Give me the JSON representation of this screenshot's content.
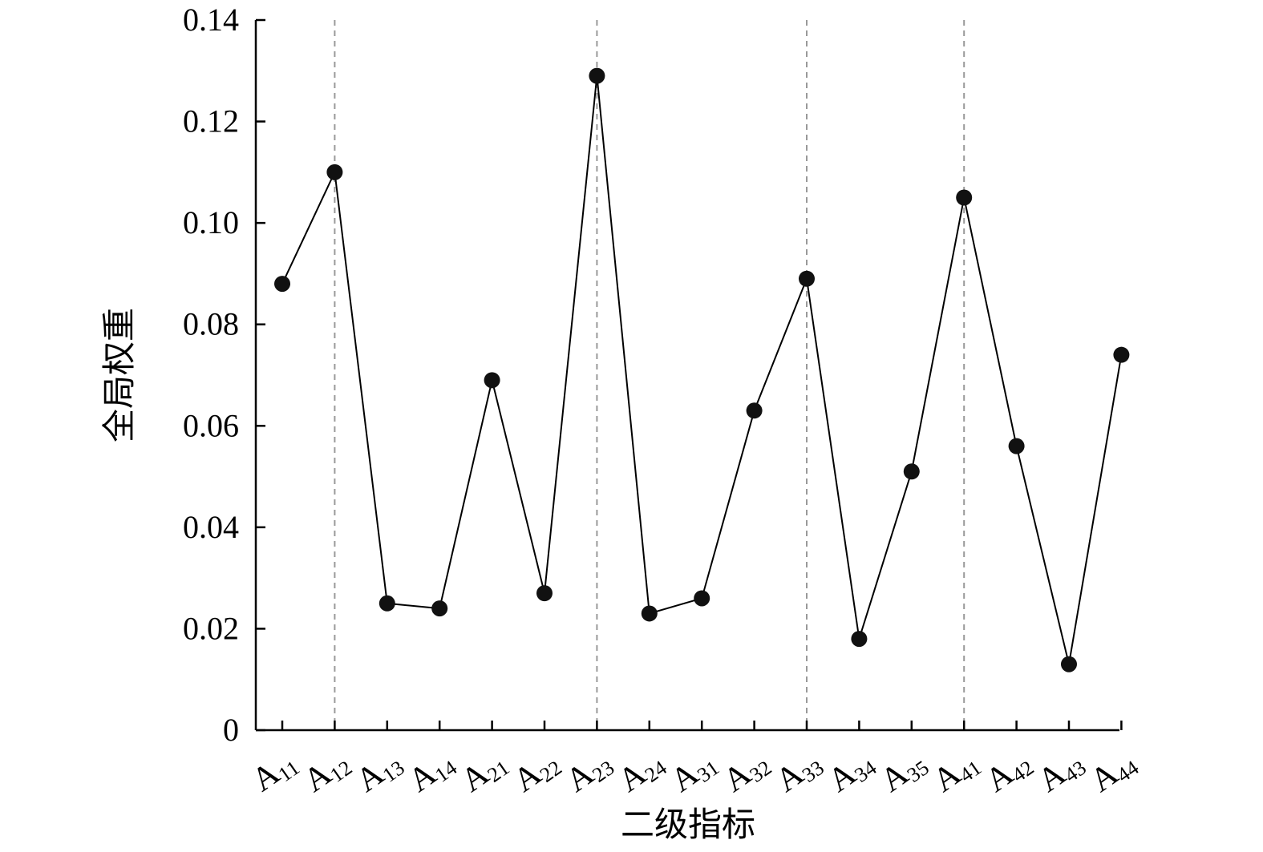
{
  "chart_data": {
    "type": "line",
    "title": "",
    "xlabel": "二级指标",
    "ylabel": "全局权重",
    "ylim": [
      0,
      0.14
    ],
    "yticks": [
      "0",
      "0.02",
      "0.04",
      "0.06",
      "0.08",
      "0.10",
      "0.12",
      "0.14"
    ],
    "grid": false,
    "legend": "none",
    "categories": [
      {
        "main": "A",
        "sub": "11"
      },
      {
        "main": "A",
        "sub": "12"
      },
      {
        "main": "A",
        "sub": "13"
      },
      {
        "main": "A",
        "sub": "14"
      },
      {
        "main": "A",
        "sub": "21"
      },
      {
        "main": "A",
        "sub": "22"
      },
      {
        "main": "A",
        "sub": "23"
      },
      {
        "main": "A",
        "sub": "24"
      },
      {
        "main": "A",
        "sub": "31"
      },
      {
        "main": "A",
        "sub": "32"
      },
      {
        "main": "A",
        "sub": "33"
      },
      {
        "main": "A",
        "sub": "34"
      },
      {
        "main": "A",
        "sub": "35"
      },
      {
        "main": "A",
        "sub": "41"
      },
      {
        "main": "A",
        "sub": "42"
      },
      {
        "main": "A",
        "sub": "43"
      },
      {
        "main": "A",
        "sub": "44"
      }
    ],
    "values": [
      0.088,
      0.11,
      0.025,
      0.024,
      0.069,
      0.027,
      0.129,
      0.023,
      0.026,
      0.063,
      0.089,
      0.018,
      0.051,
      0.105,
      0.056,
      0.013,
      0.074
    ],
    "dashed_lines_at_categories": [
      "12",
      "23",
      "33",
      "41"
    ],
    "colors": {
      "line": "#000000",
      "marker": "#111111",
      "axis": "#000000",
      "dashed": "#999999"
    }
  }
}
